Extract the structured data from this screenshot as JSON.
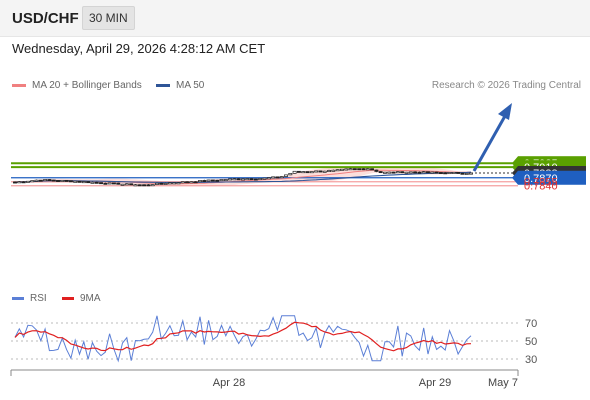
{
  "header": {
    "pair": "USD/CHF",
    "timeframe": "30 MIN"
  },
  "timestamp": "Wednesday, April 29, 2026 4:28:12 AM CET",
  "legend": {
    "ma20_bb": {
      "label": "MA 20 + Bollinger Bands",
      "color": "#f08080"
    },
    "ma50": {
      "label": "MA 50",
      "color": "#2f5597"
    },
    "credit": "Research © 2026 Trading Central"
  },
  "levels": [
    {
      "value": "0.7925",
      "type": "target",
      "color": "#5aa000"
    },
    {
      "value": "0.7910",
      "type": "target",
      "color": "#5aa000"
    },
    {
      "value": "0.7888",
      "type": "last",
      "color": "#333333"
    },
    {
      "value": "0.7870",
      "type": "pivot",
      "color": "#1f5fc0"
    },
    {
      "value": "0.7855",
      "type": "support",
      "color": "#e03030"
    },
    {
      "value": "0.7840",
      "type": "support",
      "color": "#e03030"
    }
  ],
  "rsi_panel": {
    "rsi_label": "RSI",
    "ma_label": "9MA",
    "levels": [
      "70",
      "50",
      "30"
    ]
  },
  "x_axis": {
    "ticks": [
      "Apr 28",
      "Apr 29",
      "May 7"
    ]
  },
  "chart_data": {
    "type": "candlestick",
    "series": [
      {
        "name": "USD/CHF"
      },
      {
        "name": "MA 20 + Bollinger Bands"
      },
      {
        "name": "MA 50"
      },
      {
        "name": "RSI"
      },
      {
        "name": "9MA"
      }
    ],
    "x": [
      "Apr 28",
      "Apr 29",
      "May 7"
    ],
    "ylim": [
      0.783,
      0.793
    ],
    "last_price": 0.7888,
    "pivot": 0.787,
    "targets": [
      0.791,
      0.7925
    ],
    "supports": [
      0.7855,
      0.784
    ],
    "rsi_ylim": [
      20,
      80
    ],
    "rsi_levels": [
      70,
      50,
      30
    ]
  }
}
